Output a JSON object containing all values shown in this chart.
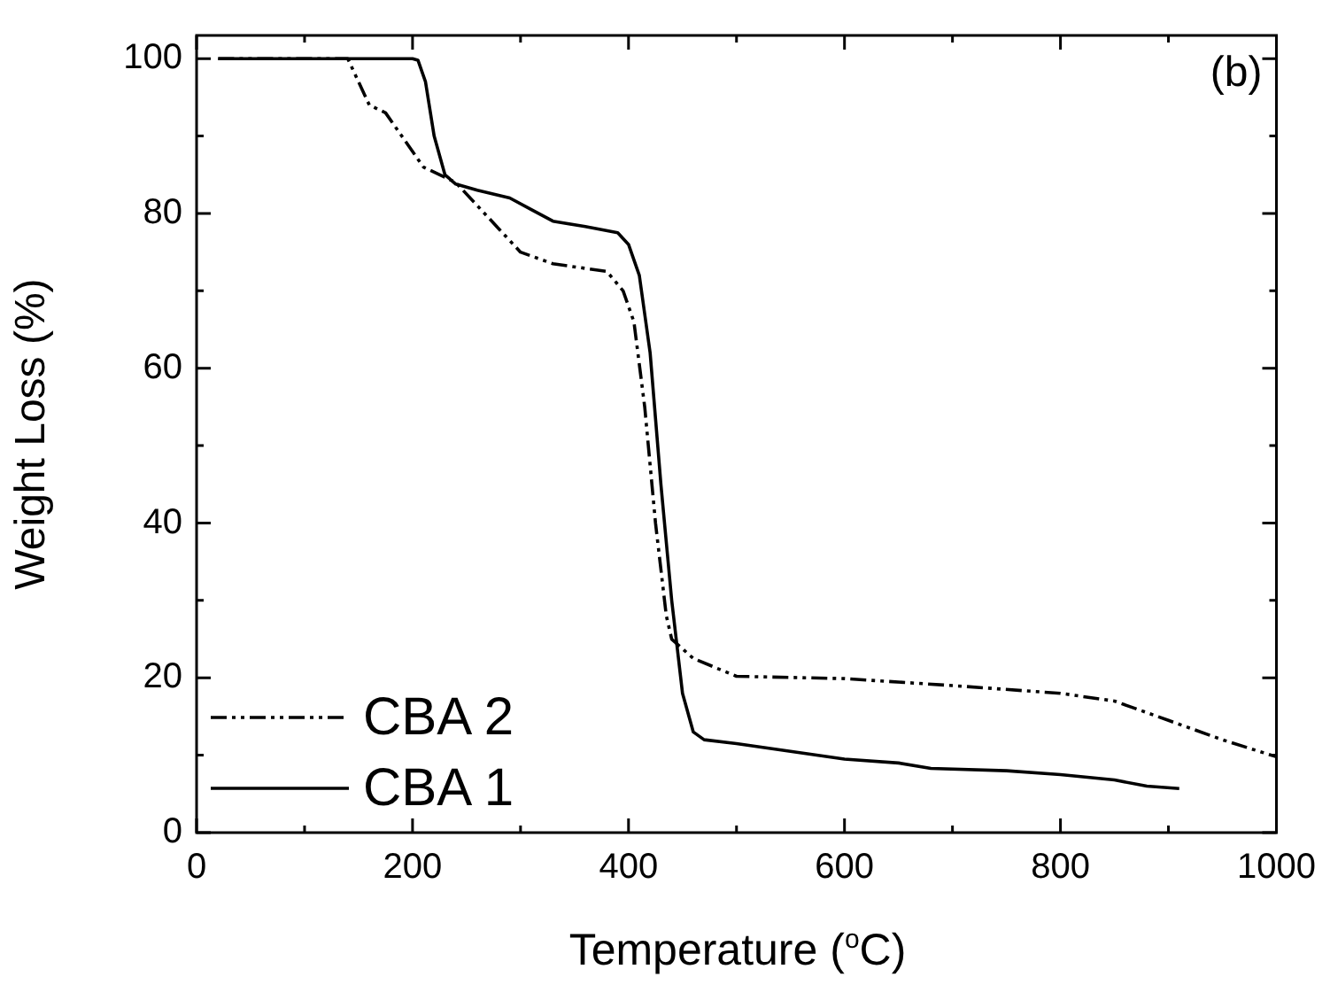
{
  "chart_data": {
    "type": "line",
    "xlabel": "Temperature ($^{o}$C)",
    "ylabel": "Weight Loss (%)",
    "annotations": [
      "(b)"
    ],
    "xlim": [
      0,
      1000
    ],
    "ylim": [
      0,
      103
    ],
    "xticks": [
      0,
      {
        "value": 100,
        "label": null
      },
      200,
      {
        "value": 300,
        "label": null
      },
      400,
      {
        "value": 500,
        "label": null
      },
      600,
      {
        "value": 700,
        "label": null
      },
      800,
      {
        "value": 900,
        "label": null
      },
      1000
    ],
    "yticks": [
      0,
      {
        "value": 10,
        "label": null
      },
      20,
      {
        "value": 30,
        "label": null
      },
      40,
      {
        "value": 50,
        "label": null
      },
      60,
      {
        "value": 70,
        "label": null
      },
      80,
      {
        "value": 90,
        "label": null
      },
      100
    ],
    "grid": false,
    "legend": "bottom left",
    "marker": "none",
    "series": [
      {
        "name": "CBA 2",
        "color": "#000000",
        "line_style": "dashdotdot",
        "x": [
          20,
          140,
          150,
          160,
          175,
          190,
          210,
          240,
          260,
          280,
          300,
          330,
          380,
          395,
          405,
          415,
          425,
          435,
          440,
          460,
          500,
          600,
          700,
          800,
          850,
          900,
          950,
          1000
        ],
        "values": [
          100,
          100,
          97,
          94,
          93,
          90,
          86,
          84,
          81,
          78,
          75,
          73.5,
          72.5,
          70,
          66,
          55,
          40,
          28,
          25,
          22.5,
          20.2,
          19.9,
          19,
          18,
          17,
          14.5,
          12,
          9.8
        ]
      },
      {
        "name": "CBA 1",
        "color": "#000000",
        "line_style": "solid",
        "x": [
          20,
          200,
          205,
          212,
          220,
          230,
          240,
          260,
          290,
          310,
          330,
          360,
          390,
          400,
          410,
          420,
          430,
          440,
          450,
          460,
          470,
          500,
          550,
          600,
          650,
          680,
          750,
          800,
          850,
          880,
          910
        ],
        "values": [
          100,
          100,
          99.8,
          97,
          90,
          85,
          83.8,
          83,
          82,
          80.5,
          79,
          78.3,
          77.5,
          76,
          72,
          62,
          45,
          30,
          18,
          13,
          12,
          11.5,
          10.5,
          9.5,
          9,
          8.3,
          8,
          7.5,
          6.8,
          6,
          5.7
        ]
      }
    ]
  }
}
